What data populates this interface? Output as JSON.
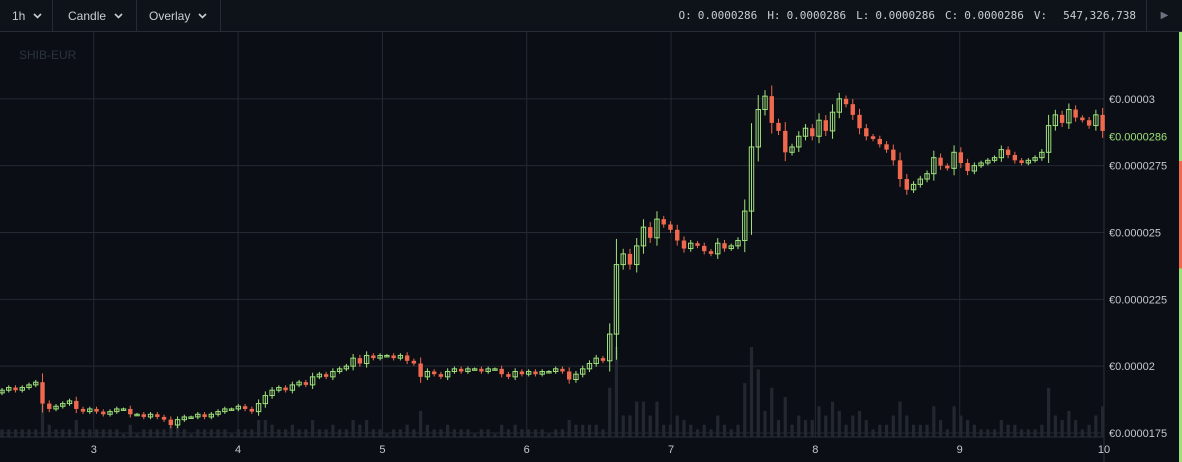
{
  "toolbar": {
    "interval": "1h",
    "chart_type": "Candle",
    "overlay": "Overlay",
    "ohlcv": {
      "open_label": "O:",
      "open": "0.0000286",
      "high_label": "H:",
      "high": "0.0000286",
      "low_label": "L:",
      "low": "0.0000286",
      "close_label": "C:",
      "close": "0.0000286",
      "volume_label": "V:",
      "volume": "547,326,738"
    },
    "play_icon": "play-icon"
  },
  "colors": {
    "background": "#0b0f15",
    "grid": "#232a33",
    "up": "#9ee07a",
    "down": "#f0684e",
    "volume": "#232830",
    "price_tag": "#9ee07a"
  },
  "chart_data": {
    "type": "candlestick",
    "title": "SHIB-EUR",
    "x_tick_labels": [
      "3",
      "4",
      "5",
      "6",
      "7",
      "8",
      "9",
      "10"
    ],
    "x_tick_days": [
      3,
      4,
      5,
      6,
      7,
      8,
      9,
      10
    ],
    "y_tick_labels": [
      "€0.00003",
      "€0.0000275",
      "€0.000025",
      "€0.0000225",
      "€0.00002",
      "€0.0000175"
    ],
    "y_tick_values": [
      3e-05,
      2.75e-05,
      2.5e-05,
      2.25e-05,
      2e-05,
      1.75e-05
    ],
    "ylim": [
      1.735e-05,
      3.25e-05
    ],
    "xlim_days": [
      2.35,
      10.0
    ],
    "current_price_label": "€0.0000286",
    "current_price": 2.86e-05,
    "grid": true,
    "candles_close": [
      1.91e-05,
      1.92e-05,
      1.91e-05,
      1.92e-05,
      1.93e-05,
      1.94e-05,
      1.86e-05,
      1.84e-05,
      1.85e-05,
      1.86e-05,
      1.87e-05,
      1.84e-05,
      1.83e-05,
      1.84e-05,
      1.83e-05,
      1.82e-05,
      1.83e-05,
      1.84e-05,
      1.84e-05,
      1.82e-05,
      1.82e-05,
      1.81e-05,
      1.82e-05,
      1.81e-05,
      1.8e-05,
      1.78e-05,
      1.8e-05,
      1.81e-05,
      1.81e-05,
      1.82e-05,
      1.81e-05,
      1.82e-05,
      1.83e-05,
      1.84e-05,
      1.84e-05,
      1.85e-05,
      1.84e-05,
      1.83e-05,
      1.86e-05,
      1.89e-05,
      1.91e-05,
      1.92e-05,
      1.91e-05,
      1.93e-05,
      1.94e-05,
      1.93e-05,
      1.96e-05,
      1.97e-05,
      1.96e-05,
      1.98e-05,
      1.99e-05,
      2e-05,
      2.03e-05,
      2.01e-05,
      2.04e-05,
      2.03e-05,
      2.04e-05,
      2.04e-05,
      2.03e-05,
      2.04e-05,
      2.02e-05,
      2.01e-05,
      1.96e-05,
      1.98e-05,
      1.97e-05,
      1.96e-05,
      1.98e-05,
      1.99e-05,
      1.98e-05,
      1.99e-05,
      1.99e-05,
      1.98e-05,
      1.99e-05,
      1.99e-05,
      1.97e-05,
      1.96e-05,
      1.98e-05,
      1.97e-05,
      1.98e-05,
      1.97e-05,
      1.98e-05,
      1.98e-05,
      1.99e-05,
      1.98e-05,
      1.95e-05,
      1.97e-05,
      1.99e-05,
      2.01e-05,
      2.03e-05,
      2.02e-05,
      2.12e-05,
      2.38e-05,
      2.42e-05,
      2.38e-05,
      2.45e-05,
      2.52e-05,
      2.48e-05,
      2.55e-05,
      2.53e-05,
      2.51e-05,
      2.47e-05,
      2.44e-05,
      2.46e-05,
      2.45e-05,
      2.43e-05,
      2.42e-05,
      2.46e-05,
      2.44e-05,
      2.45e-05,
      2.47e-05,
      2.58e-05,
      2.82e-05,
      2.96e-05,
      3.01e-05,
      2.91e-05,
      2.88e-05,
      2.8e-05,
      2.82e-05,
      2.86e-05,
      2.89e-05,
      2.86e-05,
      2.92e-05,
      2.88e-05,
      2.95e-05,
      3e-05,
      2.98e-05,
      2.94e-05,
      2.89e-05,
      2.86e-05,
      2.85e-05,
      2.83e-05,
      2.81e-05,
      2.77e-05,
      2.7e-05,
      2.66e-05,
      2.68e-05,
      2.7e-05,
      2.72e-05,
      2.78e-05,
      2.75e-05,
      2.74e-05,
      2.8e-05,
      2.76e-05,
      2.73e-05,
      2.75e-05,
      2.76e-05,
      2.77e-05,
      2.78e-05,
      2.81e-05,
      2.79e-05,
      2.77e-05,
      2.76e-05,
      2.77e-05,
      2.78e-05,
      2.8e-05,
      2.9e-05,
      2.94e-05,
      2.91e-05,
      2.96e-05,
      2.93e-05,
      2.92e-05,
      2.9e-05,
      2.94e-05,
      2.88e-05
    ]
  }
}
